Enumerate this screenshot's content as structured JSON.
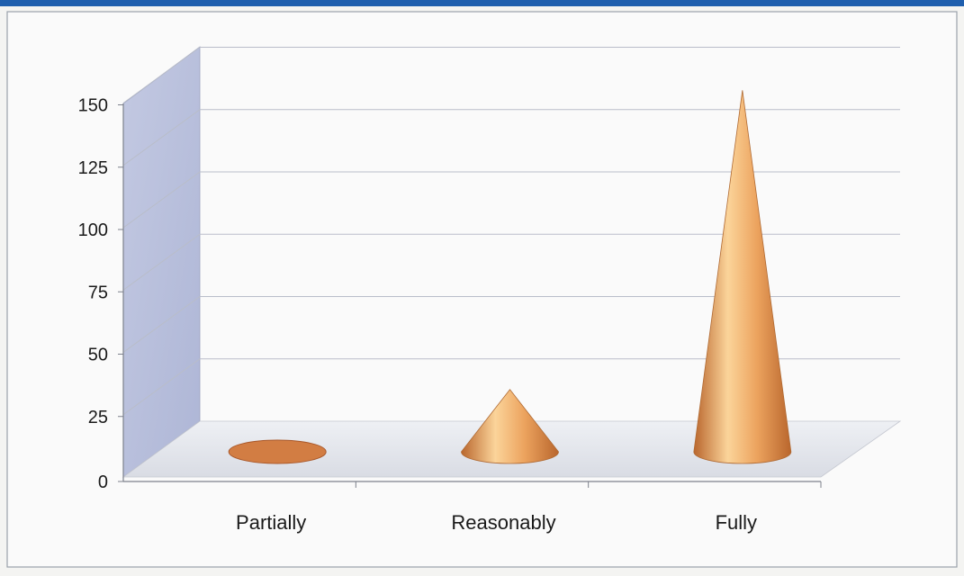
{
  "chart_data": {
    "type": "bar",
    "style": "3d-cone",
    "categories": [
      "Partially",
      "Reasonably",
      "Fully"
    ],
    "values": [
      1,
      25,
      145
    ],
    "ylim": [
      0,
      150
    ],
    "yticks": [
      0,
      25,
      50,
      75,
      100,
      125,
      150
    ],
    "title": "",
    "xlabel": "",
    "ylabel": "",
    "grid": true,
    "legend": "none",
    "colors": {
      "cone_light": "#fbd49a",
      "cone_mid": "#eca35e",
      "cone_dark": "#b9662d",
      "wall": "#b8c0dc",
      "floor": "#e6e8ee",
      "gridline": "#b9bdc9",
      "header_bar": "#1f5fae"
    }
  }
}
